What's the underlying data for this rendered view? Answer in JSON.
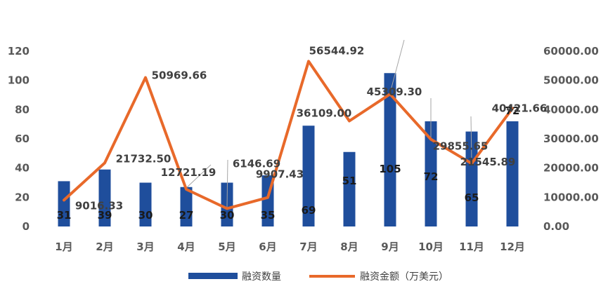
{
  "chart_data": {
    "type": "bar",
    "categories": [
      "1月",
      "2月",
      "3月",
      "4月",
      "5月",
      "6月",
      "7月",
      "8月",
      "9月",
      "10月",
      "11月",
      "12月"
    ],
    "series": [
      {
        "name": "融资数量",
        "type": "bar",
        "axis": "left",
        "color": "#1f4e9c",
        "values": [
          31,
          39,
          30,
          27,
          30,
          35,
          69,
          51,
          105,
          72,
          65,
          72
        ],
        "labels": [
          "31",
          "39",
          "30",
          "27",
          "30",
          "35",
          "69",
          "51",
          "105",
          "72",
          "65",
          "72"
        ]
      },
      {
        "name": "融资金额（万美元）",
        "type": "line",
        "axis": "right",
        "color": "#e8692a",
        "values": [
          9016.33,
          21732.5,
          50969.66,
          12721.19,
          6146.69,
          9907.43,
          56544.92,
          36109.0,
          45309.3,
          29855.65,
          21545.89,
          40421.66
        ],
        "labels": [
          "9016.33",
          "21732.50",
          "50969.66",
          "12721.19",
          "6146.69",
          "9907.43",
          "56544.92",
          "36109.00",
          "45309.30",
          "29855.65",
          "21545.89",
          "40421.66"
        ]
      }
    ],
    "y_left": {
      "ticks": [
        "0",
        "20",
        "40",
        "60",
        "80",
        "100",
        "120"
      ],
      "range": [
        0,
        120
      ]
    },
    "y_right": {
      "ticks": [
        "0.00",
        "10000.00",
        "20000.00",
        "30000.00",
        "40000.00",
        "50000.00",
        "60000.00"
      ],
      "range": [
        0,
        60000
      ]
    },
    "grid": false,
    "legend": "bottom"
  }
}
